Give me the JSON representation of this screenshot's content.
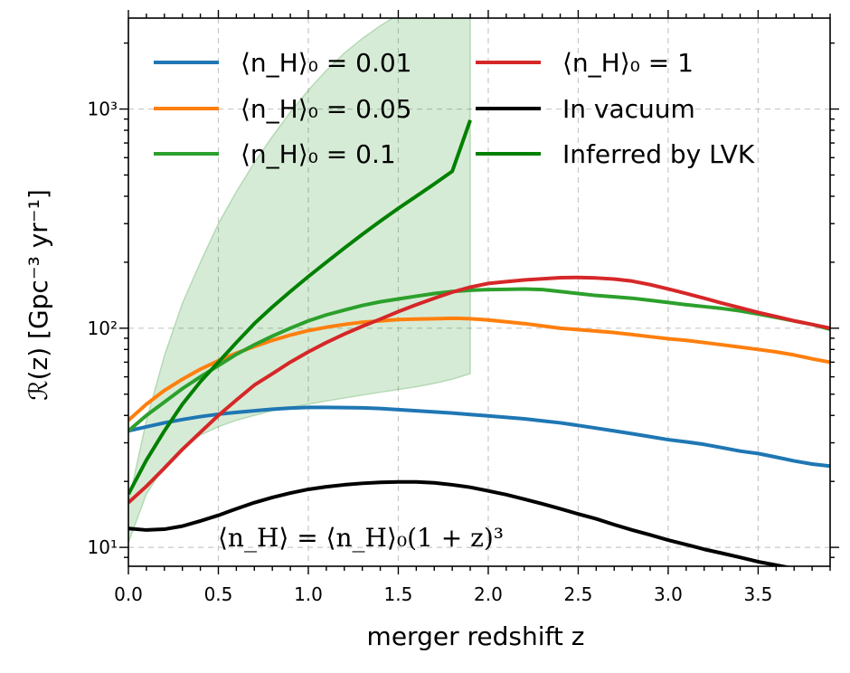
{
  "chart_data": {
    "type": "line",
    "xlabel": "merger redshift z",
    "ylabel": "ℛ(z)  [Gpc⁻³ yr⁻¹]",
    "xlim": [
      0.0,
      3.9
    ],
    "ylim": [
      8.2,
      2600
    ],
    "yscale": "log",
    "grid": true,
    "legend_position": "top-left",
    "x_ticks": [
      "0.0",
      "0.5",
      "1.0",
      "1.5",
      "2.0",
      "2.5",
      "3.0",
      "3.5"
    ],
    "y_ticks": [
      {
        "value": 10,
        "label": "10¹"
      },
      {
        "value": 100,
        "label": "10²"
      },
      {
        "value": 1000,
        "label": "10³"
      }
    ],
    "annotation": "⟨n_H⟩ = ⟨n_H⟩₀(1 + z)³",
    "series": [
      {
        "name": "⟨n_H⟩₀ = 0.01",
        "color": "#1f77b4",
        "x": [
          0,
          0.1,
          0.2,
          0.3,
          0.4,
          0.5,
          0.6,
          0.7,
          0.8,
          0.9,
          1.0,
          1.1,
          1.2,
          1.3,
          1.4,
          1.5,
          1.6,
          1.7,
          1.8,
          1.9,
          2.0,
          2.1,
          2.2,
          2.3,
          2.4,
          2.5,
          2.6,
          2.7,
          2.8,
          2.9,
          3.0,
          3.1,
          3.2,
          3.3,
          3.4,
          3.5,
          3.6,
          3.7,
          3.8,
          3.9
        ],
        "y": [
          34,
          35.5,
          37,
          38.3,
          39.5,
          40.5,
          41.3,
          42,
          42.7,
          43.2,
          43.5,
          43.5,
          43.4,
          43.3,
          43,
          42.5,
          42,
          41.5,
          41,
          40.4,
          39.8,
          39.2,
          38.6,
          37.8,
          37,
          36,
          35,
          34,
          33,
          32,
          31,
          30.3,
          29.5,
          28.5,
          27.5,
          26.8,
          25.8,
          24.8,
          24,
          23.5
        ]
      },
      {
        "name": "⟨n_H⟩₀ = 0.05",
        "color": "#ff7f0e",
        "x": [
          0,
          0.1,
          0.2,
          0.3,
          0.4,
          0.5,
          0.6,
          0.7,
          0.8,
          0.9,
          1.0,
          1.1,
          1.2,
          1.3,
          1.4,
          1.5,
          1.6,
          1.7,
          1.8,
          1.9,
          2.0,
          2.1,
          2.2,
          2.3,
          2.4,
          2.5,
          2.6,
          2.7,
          2.8,
          2.9,
          3.0,
          3.1,
          3.2,
          3.3,
          3.4,
          3.5,
          3.6,
          3.7,
          3.8,
          3.9
        ],
        "y": [
          38,
          45,
          52,
          58.5,
          65,
          71,
          77,
          82.5,
          88,
          93,
          97.5,
          101,
          104,
          106.5,
          108,
          109.5,
          110,
          110.5,
          111,
          110.5,
          109,
          107,
          105,
          102.5,
          100,
          98.5,
          97,
          95.5,
          93.5,
          91.5,
          89.5,
          88,
          86,
          84,
          82,
          80,
          78,
          75.5,
          72.5,
          70
        ]
      },
      {
        "name": "⟨n_H⟩₀ = 0.1",
        "color": "#2ca02c",
        "x": [
          0,
          0.1,
          0.2,
          0.3,
          0.4,
          0.5,
          0.6,
          0.7,
          0.8,
          0.9,
          1.0,
          1.1,
          1.2,
          1.3,
          1.4,
          1.5,
          1.6,
          1.7,
          1.8,
          1.9,
          2.0,
          2.1,
          2.2,
          2.3,
          2.4,
          2.5,
          2.6,
          2.7,
          2.8,
          2.9,
          3.0,
          3.1,
          3.2,
          3.3,
          3.4,
          3.5,
          3.6,
          3.7,
          3.8,
          3.9
        ],
        "y": [
          34,
          40,
          46,
          53,
          60,
          67.5,
          76,
          84,
          92,
          100,
          108,
          115,
          121,
          127,
          132,
          136,
          140,
          144,
          147,
          149,
          150,
          150.5,
          151,
          150,
          147,
          144,
          141,
          139,
          137,
          134,
          131,
          128,
          125.5,
          123,
          120,
          116,
          112,
          108,
          104,
          99
        ]
      },
      {
        "name": "⟨n_H⟩₀ = 1",
        "color": "#d62728",
        "x": [
          0,
          0.1,
          0.2,
          0.3,
          0.4,
          0.5,
          0.6,
          0.7,
          0.8,
          0.9,
          1.0,
          1.1,
          1.2,
          1.3,
          1.4,
          1.5,
          1.6,
          1.7,
          1.8,
          1.9,
          2.0,
          2.1,
          2.2,
          2.3,
          2.4,
          2.5,
          2.6,
          2.7,
          2.8,
          2.9,
          3.0,
          3.1,
          3.2,
          3.3,
          3.4,
          3.5,
          3.6,
          3.7,
          3.8,
          3.9
        ],
        "y": [
          16,
          19,
          23,
          28,
          33.5,
          40,
          47,
          55,
          62,
          70,
          78,
          86,
          94,
          102,
          110,
          119,
          128,
          137,
          146,
          154,
          160,
          163,
          166,
          168,
          170,
          170.5,
          169.5,
          167.5,
          164,
          158,
          151,
          144,
          137,
          130,
          124,
          118,
          113,
          108,
          104,
          100
        ]
      },
      {
        "name": "In vacuum",
        "color": "#000000",
        "x": [
          0,
          0.1,
          0.2,
          0.3,
          0.4,
          0.5,
          0.6,
          0.7,
          0.8,
          0.9,
          1.0,
          1.1,
          1.2,
          1.3,
          1.4,
          1.5,
          1.6,
          1.7,
          1.8,
          1.9,
          2.0,
          2.1,
          2.2,
          2.3,
          2.4,
          2.5,
          2.6,
          2.7,
          2.8,
          2.9,
          3.0,
          3.1,
          3.2,
          3.3,
          3.4,
          3.5,
          3.6,
          3.7,
          3.8
        ],
        "y": [
          12.2,
          12.0,
          12.1,
          12.5,
          13.2,
          14.0,
          15.0,
          16.0,
          16.9,
          17.7,
          18.4,
          18.9,
          19.3,
          19.6,
          19.8,
          19.9,
          19.9,
          19.7,
          19.3,
          18.8,
          18.1,
          17.4,
          16.6,
          15.8,
          15.0,
          14.2,
          13.5,
          12.7,
          12.0,
          11.4,
          10.8,
          10.3,
          9.8,
          9.4,
          9.0,
          8.6,
          8.3,
          8.0,
          7.7
        ]
      },
      {
        "name": "Inferred by LVK",
        "color": "#008000",
        "x": [
          0,
          0.1,
          0.2,
          0.3,
          0.4,
          0.5,
          0.6,
          0.7,
          0.8,
          0.9,
          1.0,
          1.1,
          1.2,
          1.3,
          1.4,
          1.5,
          1.6,
          1.7,
          1.8,
          1.9
        ],
        "y": [
          17.5,
          25,
          34,
          45,
          57,
          70,
          86,
          105,
          125,
          147,
          172,
          200,
          232,
          268,
          308,
          352,
          400,
          455,
          520,
          890
        ],
        "band_upper": [
          16,
          38,
          75,
          130,
          200,
          300,
          420,
          570,
          750,
          970,
          1220,
          1500,
          1800,
          2100,
          2400,
          2700,
          3000,
          3300,
          3600,
          4000
        ],
        "band_lower": [
          10.5,
          17.5,
          23.5,
          28.5,
          32.5,
          35.5,
          38,
          40,
          42,
          43.5,
          45,
          46.5,
          48,
          49.5,
          51,
          52.5,
          54,
          56,
          58.5,
          62
        ]
      }
    ]
  }
}
